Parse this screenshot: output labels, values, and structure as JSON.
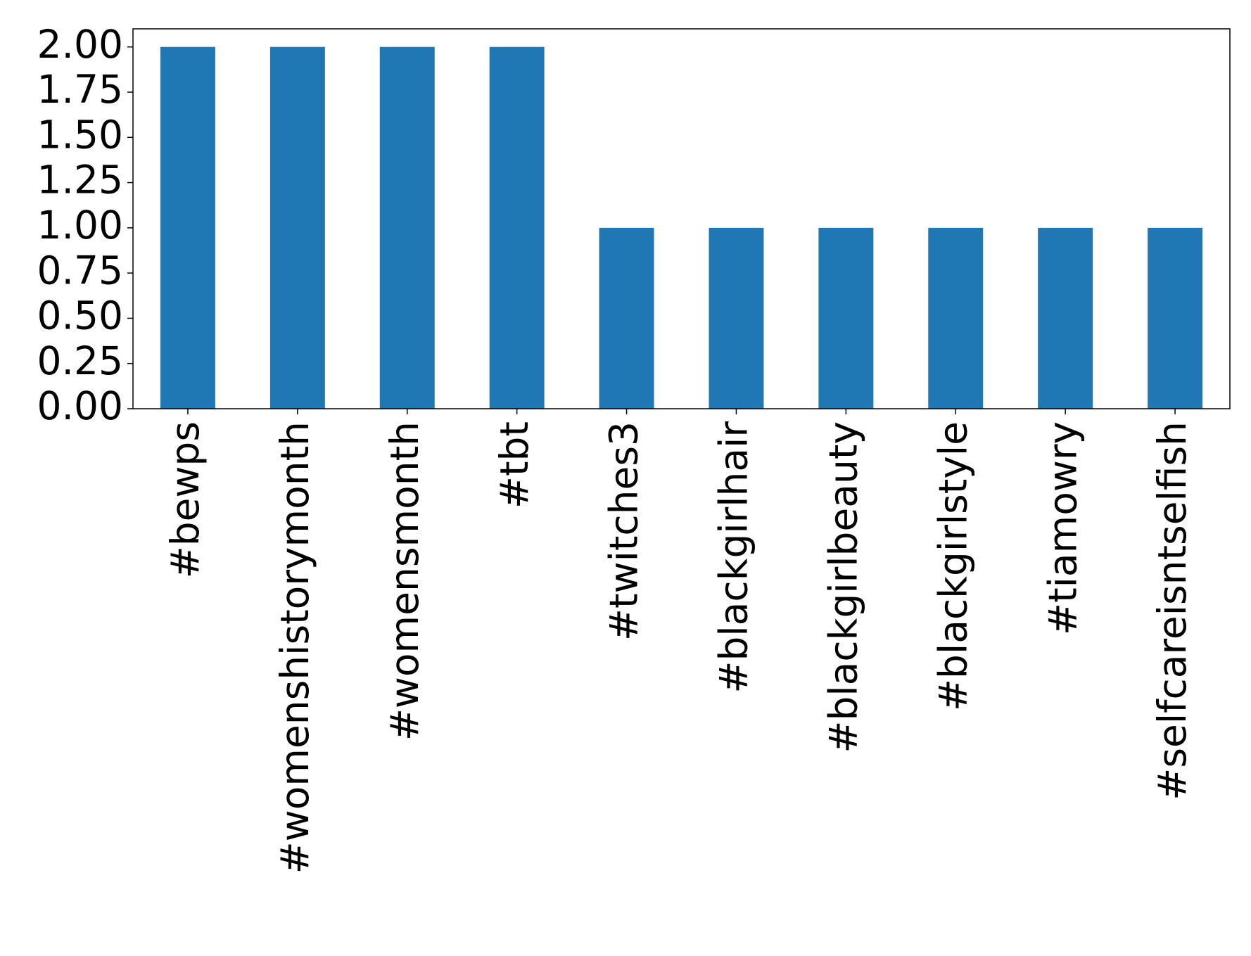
{
  "chart_data": {
    "type": "bar",
    "categories": [
      "#bewps",
      "#womenshistorymonth",
      "#womensmonth",
      "#tbt",
      "#twitches3",
      "#blackgirlhair",
      "#blackgirlbeauty",
      "#blackgirlstyle",
      "#tiamowry",
      "#selfcareisntselfish"
    ],
    "values": [
      2,
      2,
      2,
      2,
      1,
      1,
      1,
      1,
      1,
      1
    ],
    "color": "#1f77b4",
    "ylim": [
      0,
      2.1
    ],
    "yticks": [
      {
        "value": 0,
        "label": "0.00"
      },
      {
        "value": 0.25,
        "label": "0.25"
      },
      {
        "value": 0.5,
        "label": "0.50"
      },
      {
        "value": 0.75,
        "label": "0.75"
      },
      {
        "value": 1,
        "label": "1.00"
      },
      {
        "value": 1.25,
        "label": "1.25"
      },
      {
        "value": 1.5,
        "label": "1.50"
      },
      {
        "value": 1.75,
        "label": "1.75"
      },
      {
        "value": 2,
        "label": "2.00"
      }
    ],
    "grid": false
  }
}
